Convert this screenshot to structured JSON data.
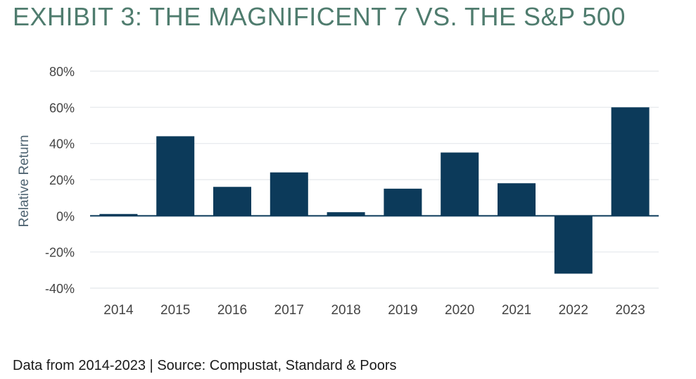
{
  "title": "EXHIBIT 3: THE MAGNIFICENT 7 VS. THE S&P 500",
  "footnote": "Data from 2014-2023 | Source: Compustat, Standard & Poors",
  "colors": {
    "title": "#4f7c6e",
    "bar": "#0c3a5a",
    "grid": "#e4e8eb",
    "zero_line": "#0c3a5a",
    "tick_text": "#444444",
    "axis_label": "#4f6472"
  },
  "chart_data": {
    "type": "bar",
    "categories": [
      "2014",
      "2015",
      "2016",
      "2017",
      "2018",
      "2019",
      "2020",
      "2021",
      "2022",
      "2023"
    ],
    "values": [
      1,
      44,
      16,
      24,
      2,
      15,
      35,
      18,
      -32,
      60
    ],
    "value_unit": "%",
    "ylabel": "Relative Return",
    "xlabel": "",
    "ylim": [
      -40,
      80
    ],
    "yticks": [
      80,
      60,
      40,
      20,
      0,
      -20,
      -40
    ],
    "ytick_labels": [
      "80%",
      "60%",
      "40%",
      "20%",
      "0%",
      "-20%",
      "-40%"
    ],
    "grid": true,
    "legend": "none"
  }
}
